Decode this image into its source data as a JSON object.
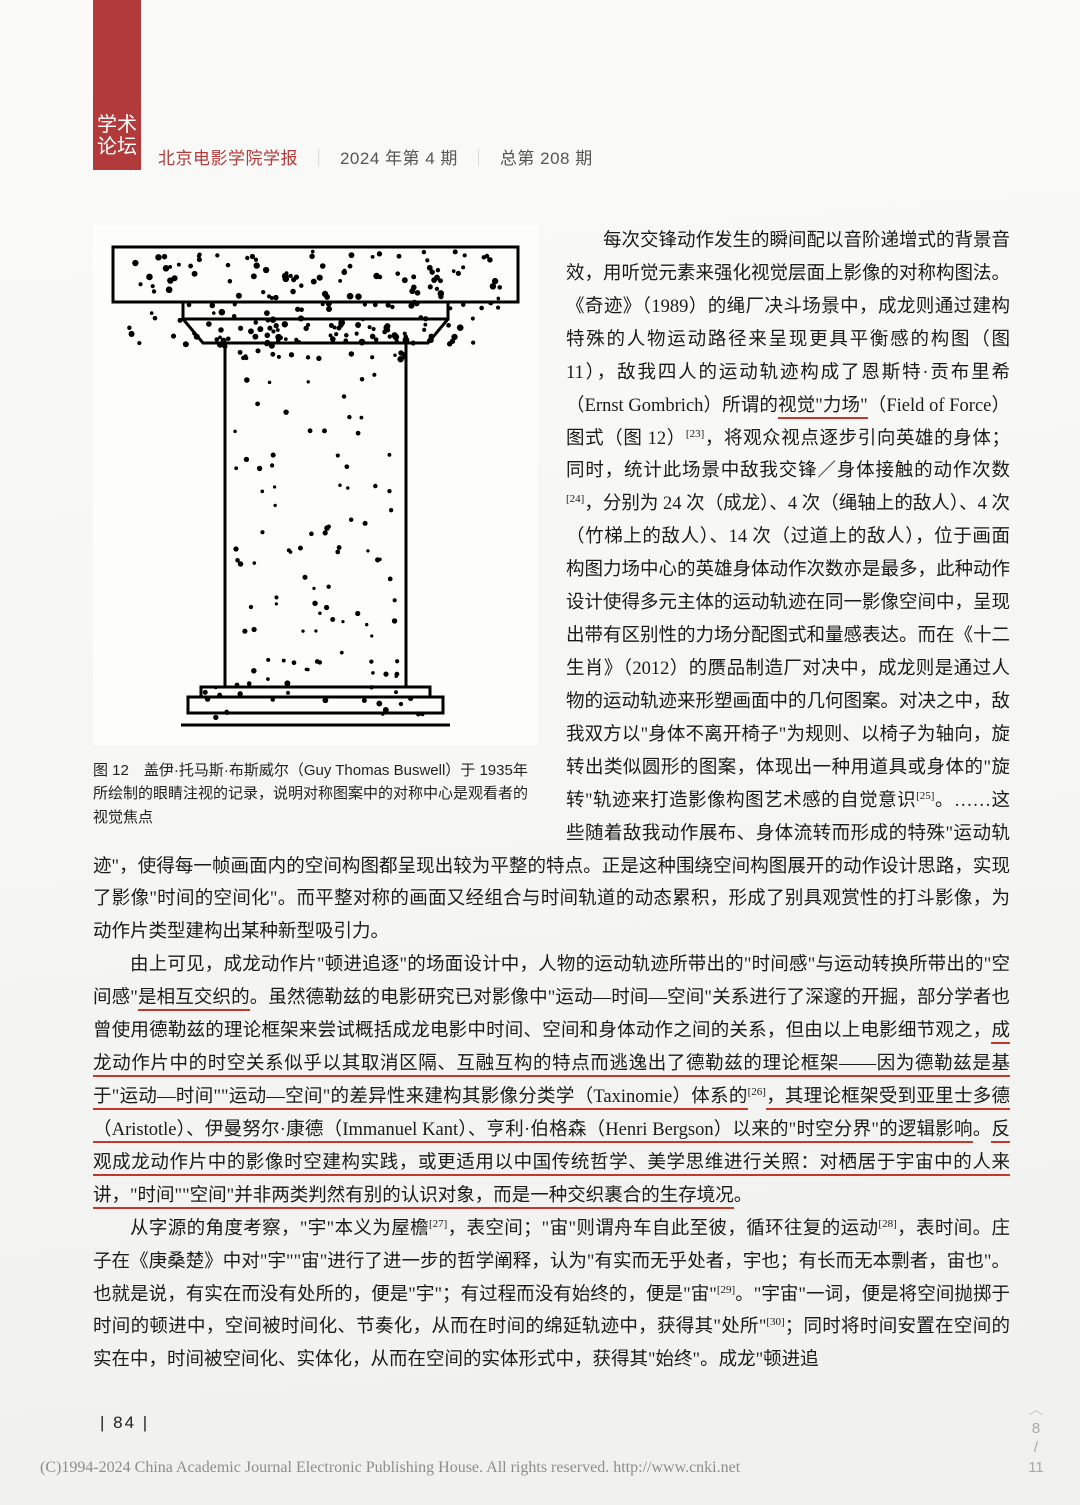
{
  "tab": {
    "line1": "学术",
    "line2": "论坛"
  },
  "header": {
    "journal": "北京电影学院学报",
    "issue": "2024 年第 4 期",
    "total": "总第 208 期"
  },
  "figure": {
    "caption": "图 12　盖伊·托马斯·布斯威尔（Guy Thomas Buswell）于 1935年所绘制的眼睛注视的记录，说明对称图案中的对称中心是观看者的视觉焦点"
  },
  "para1": {
    "t1": "每次交锋动作发生的瞬间配以音阶递增式的背景音效，用听觉元素来强化视觉层面上影像的对称构图法。《奇迹》（1989）的绳厂决斗场景中，成龙则通过建构特殊的人物运动路径来呈现更具平衡感的构图（图 11），敌我四人的运动轨迹构成了恩斯特·贡布里希（Ernst Gombrich）所谓的",
    "u1": "视觉\"力场\"",
    "t2": "（Field of Force）图式（图 12）",
    "sup1": "[23]",
    "t3": "，将观众视点逐步引向英雄的身体；同时，统计此场景中敌我交锋／身体接触的动作次数",
    "sup2": "[24]",
    "t4": "，分别为 24 次（成龙）、4 次（绳轴上的敌人）、4 次（竹梯上的敌人）、14 次（过道上的敌人），位于画面构图力场中心的英雄身体动作次数亦是最多，此种动作设计使得多元主体的运动轨迹在同一影像空间中，呈现出带有区别性的力场分配图式和量感表达。而在《十二生肖》（2012）的赝品制造厂对决中，成龙则是通过人物的运动轨迹来形塑画面中的几何图案。对决之中，敌我双方以\"身体不离开椅子\"为规则、以椅子为轴向，旋转出类似圆形的图案，体现出一种用道具或身体的\"旋转\"轨迹来打造影像构图艺术感的自觉意识",
    "sup3": "[25]",
    "t5": "。……这些随着敌我动作展布、身体流转而形成的特殊\"运动轨迹\"，使得每一帧画面内的空间构图都呈现出较为平整的特点。正是这种围绕空间构图展开的动作设计思路，实现了影像\"时间的空间化\"。而平整对称的画面又经组合与时间轨道的动态累积，形成了别具观赏性的打斗影像，为动作片类型建构出某种新型吸引力。"
  },
  "para2": {
    "t1": "由上可见，成龙动作片\"顿进追逐\"的场面设计中，人物的运动轨迹所带出的\"时间感\"与运动转换所带出的\"空间感\"",
    "u1": "是相互交织的",
    "t2": "。虽然德勒兹的电影研究已对影像中\"运动—时间—空间\"关系进行了深邃的开掘，部分学者也曾使用德勒兹的理论框架来尝试概括成龙电影中时间、空间和身体动作之间的关系，但由以上电影细节观之，",
    "u2": "成龙动作片中的时空关系似乎以其取消区隔、互融互构的特点而逃逸出了德勒兹的理论框架——因为德勒兹是基于\"运动—时间\"\"运动—空间\"的差异性来建构其影像分类学（Taxinomie）体系的",
    "sup1": "[26]",
    "u3": "，其理论框架受到亚里士多德（Aristotle）、伊曼努尔·康德（Immanuel Kant）、亨利·伯格森（Henri Bergson）以来的\"时空分界\"的逻辑影响",
    "t3": "。",
    "u4": "反观成龙动作片中的影像时空建构实践，或更适用以中国传统哲学、美学思维进行关照：对栖居于宇宙中的人来讲，\"时间\"\"空间\"并非两类判然有别的认识对象，而是一种交织裹合的生存境况",
    "t4": "。"
  },
  "para3": {
    "t1": "从字源的角度考察，\"宇\"本义为屋檐",
    "sup1": "[27]",
    "t2": "，表空间；\"宙\"则谓舟车自此至彼，循环往复的运动",
    "sup2": "[28]",
    "t3": "，表时间。庄子在《庚桑楚》中对\"宇\"\"宙\"进行了进一步的哲学阐释，认为\"有实而无乎处者，宇也；有长而无本剽者，宙也\"。也就是说，有实在而没有处所的，便是\"宇\"；有过程而没有始终的，便是\"宙\"",
    "sup3": "[29]",
    "t4": "。\"宇宙\"一词，便是将空间抛掷于时间的顿进中，空间被时间化、节奏化，从而在时间的绵延轨迹中，获得其\"处所\"",
    "sup4": "[30]",
    "t5": "；同时将时间安置在空间的实在中，时间被空间化、实体化，从而在空间的实体形式中，获得其\"始终\"。成龙\"顿进追"
  },
  "pagenum": "| 84 |",
  "copyright": "(C)1994-2024 China Academic Journal Electronic Publishing House. All rights reserved.    http://www.cnki.net",
  "indicator": {
    "cur": "8",
    "total": "11"
  }
}
